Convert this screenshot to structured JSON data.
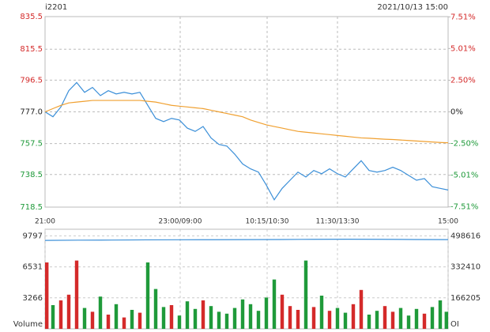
{
  "header": {
    "symbol": "i2201",
    "datetime": "2021/10/13 15:00"
  },
  "chart_data": [
    {
      "type": "line",
      "up_color": "#d42a2a",
      "down_color": "#1f9a3a",
      "grid": true,
      "xlim": [
        0,
        51
      ],
      "xticks": [
        {
          "value": 0,
          "label": "21:00"
        },
        {
          "value": 17.1,
          "label": "23:00/09:00"
        },
        {
          "value": 28.1,
          "label": "10:15/10:30"
        },
        {
          "value": 37,
          "label": "11:30/13:30"
        },
        {
          "value": 51,
          "label": "15:00"
        }
      ],
      "ylim": [
        718.5,
        835.5
      ],
      "yticks": [
        835.5,
        815.5,
        796.5,
        {
          "value": 777,
          "label": "777.0"
        },
        757.5,
        738.5,
        718.5
      ],
      "y2lim": [
        -7.53,
        7.53
      ],
      "y2ticks": [
        {
          "value": 7.51,
          "label": "7.51%"
        },
        {
          "value": 5.01,
          "label": "5.01%"
        },
        {
          "value": 2.5,
          "label": "2.50%"
        },
        {
          "value": 0,
          "label": "0%"
        },
        {
          "value": -2.5,
          "label": "-2.50%"
        },
        {
          "value": -5.01,
          "label": "-5.01%"
        },
        {
          "value": -7.51,
          "label": "-7.51%"
        }
      ],
      "series": [
        {
          "color": "#3b8fd8",
          "values": [
            777,
            774,
            780,
            790,
            795,
            789,
            792,
            787,
            790,
            788,
            789,
            788,
            789,
            781,
            773,
            771,
            773,
            772,
            767,
            765,
            768,
            761,
            757,
            756,
            751,
            745,
            742,
            740,
            732,
            723,
            730,
            735,
            740,
            737,
            741,
            739,
            742,
            739,
            737,
            742,
            747,
            741,
            740,
            741,
            743,
            741,
            738,
            735,
            736,
            731,
            730,
            729
          ]
        },
        {
          "color": "#f0a030",
          "values": [
            777,
            779,
            781,
            782.5,
            783,
            783.5,
            784,
            784,
            784,
            784,
            784,
            784,
            784,
            783.5,
            783,
            782,
            781,
            780.5,
            780,
            779.5,
            779,
            778,
            777,
            776,
            775,
            774,
            772,
            770.5,
            769,
            768,
            767,
            766,
            765,
            764.5,
            764,
            763.5,
            763,
            762.5,
            762,
            761.5,
            761,
            760.8,
            760.5,
            760.2,
            760,
            759.7,
            759.4,
            759.1,
            758.8,
            758.5,
            758.2,
            758
          ]
        }
      ]
    },
    {
      "type": "bar",
      "ylabel": "Volume",
      "y2label": "OI",
      "xlim": [
        0,
        51
      ],
      "ylim": [
        0,
        10500
      ],
      "yticks": [
        3266,
        6531,
        9797
      ],
      "y2lim": [
        0,
        534000
      ],
      "y2ticks": [
        166205,
        332410,
        498616
      ],
      "series": [
        {
          "color": "#d42a2a",
          "values": [
            7000,
            2500,
            3000,
            3600,
            7200,
            2200,
            1800,
            3400,
            1500,
            2600,
            1200,
            2000,
            1700,
            7000,
            4200,
            2300,
            2500,
            1400,
            2900,
            2100,
            3000,
            2400,
            1800,
            1600,
            2200,
            3100,
            2600,
            1900,
            3300,
            5200,
            3600,
            2400,
            2000,
            7200,
            2300,
            3500,
            1900,
            2200,
            1700,
            2600,
            4100,
            1500,
            1900,
            2400,
            1800,
            2200,
            1400,
            2100,
            1600,
            2300,
            3000,
            1800
          ]
        },
        {
          "color": "#3b8fd8",
          "axis": "y2",
          "values": [
            474000,
            475500,
            476000,
            477000,
            477500,
            478000,
            478500,
            479000,
            480000,
            480500,
            480000,
            479000,
            478500
          ]
        }
      ]
    }
  ]
}
